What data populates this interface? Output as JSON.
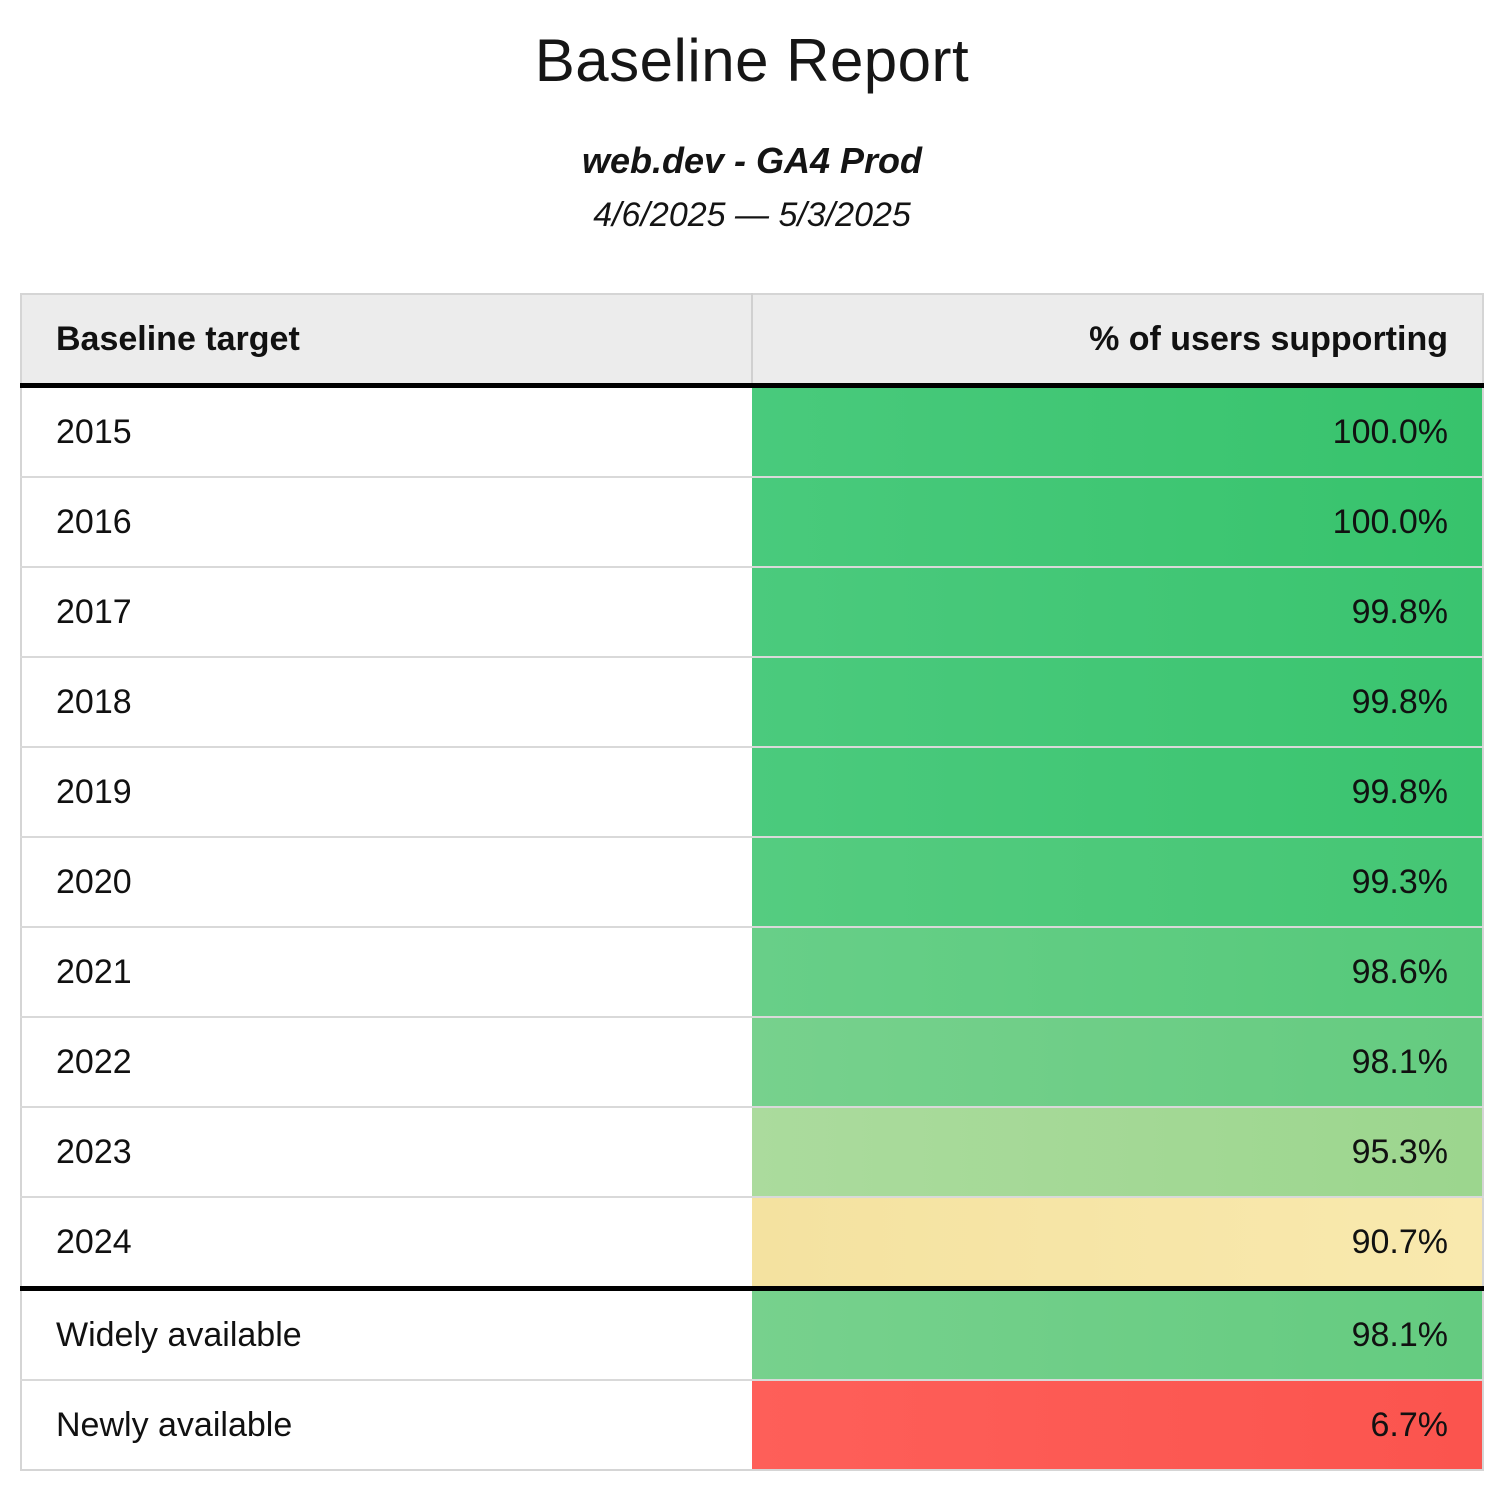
{
  "title": "Baseline Report",
  "subtitle": "web.dev - GA4 Prod",
  "date_range": "4/6/2025 — 5/3/2025",
  "colors": {
    "header_bg": "#ececec",
    "grid_border": "#d9d9d9",
    "section_border": "#000000",
    "green_high": "#3bc46f",
    "green_mid": "#6fcd83",
    "green_low": "#a6d896",
    "yellow": "#f7e6a7",
    "red": "#fd5b55"
  },
  "table": {
    "columns": [
      "Baseline target",
      "% of users supporting"
    ],
    "rows": [
      {
        "label": "2015",
        "value": "100.0%",
        "bg_left": "#49ca7c",
        "bg_right": "#37c36c",
        "section_break": false
      },
      {
        "label": "2016",
        "value": "100.0%",
        "bg_left": "#49ca7c",
        "bg_right": "#37c36c",
        "section_break": false
      },
      {
        "label": "2017",
        "value": "99.8%",
        "bg_left": "#4bca7d",
        "bg_right": "#3ac46f",
        "section_break": false
      },
      {
        "label": "2018",
        "value": "99.8%",
        "bg_left": "#4bca7d",
        "bg_right": "#3ac46f",
        "section_break": false
      },
      {
        "label": "2019",
        "value": "99.8%",
        "bg_left": "#4bca7d",
        "bg_right": "#3ac46f",
        "section_break": false
      },
      {
        "label": "2020",
        "value": "99.3%",
        "bg_left": "#55cc80",
        "bg_right": "#44c674",
        "section_break": false
      },
      {
        "label": "2021",
        "value": "98.6%",
        "bg_left": "#68cf88",
        "bg_right": "#55c97a",
        "section_break": false
      },
      {
        "label": "2022",
        "value": "98.1%",
        "bg_left": "#77d18d",
        "bg_right": "#64cb80",
        "section_break": false
      },
      {
        "label": "2023",
        "value": "95.3%",
        "bg_left": "#abdb9d",
        "bg_right": "#9cd68e",
        "section_break": false
      },
      {
        "label": "2024",
        "value": "90.7%",
        "bg_left": "#f4e2a0",
        "bg_right": "#f9e9ae",
        "section_break": false
      },
      {
        "label": "Widely available",
        "value": "98.1%",
        "bg_left": "#77d18d",
        "bg_right": "#64cb80",
        "section_break": true
      },
      {
        "label": "Newly available",
        "value": "6.7%",
        "bg_left": "#fe5f59",
        "bg_right": "#fb544e",
        "section_break": false
      }
    ]
  },
  "chart_data": {
    "type": "table",
    "title": "Baseline Report",
    "subtitle": "web.dev - GA4 Prod",
    "date_range": "4/6/2025 — 5/3/2025",
    "columns": [
      "Baseline target",
      "% of users supporting"
    ],
    "categories": [
      "2015",
      "2016",
      "2017",
      "2018",
      "2019",
      "2020",
      "2021",
      "2022",
      "2023",
      "2024",
      "Widely available",
      "Newly available"
    ],
    "values": [
      100.0,
      100.0,
      99.8,
      99.8,
      99.8,
      99.3,
      98.6,
      98.1,
      95.3,
      90.7,
      98.1,
      6.7
    ],
    "value_unit": "percent",
    "layout": "two-column table, value column heat-colored green (high) to yellow (~90%) to red (low); thick black rule under header and above the availability summary rows"
  }
}
